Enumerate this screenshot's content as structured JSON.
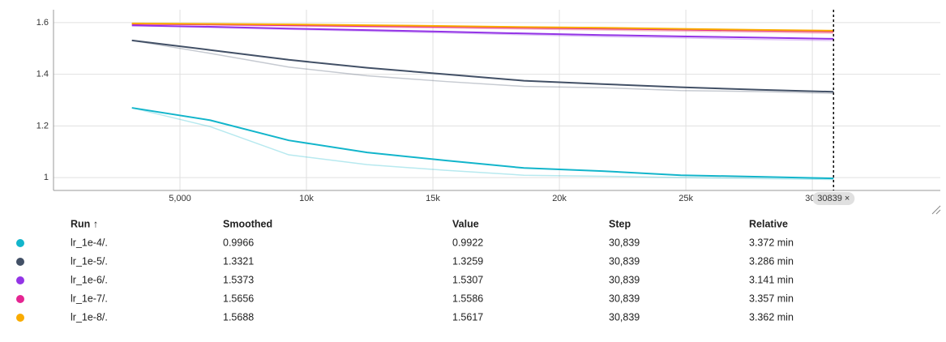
{
  "chart_data": {
    "type": "line",
    "x": [
      3100,
      6200,
      9300,
      12400,
      15500,
      18600,
      21700,
      24800,
      27900,
      30839
    ],
    "xlim": [
      0,
      35060
    ],
    "ylim": [
      0.95,
      1.65
    ],
    "xticks": [
      {
        "value": 5000,
        "label": "5,000"
      },
      {
        "value": 10000,
        "label": "10k"
      },
      {
        "value": 15000,
        "label": "15k"
      },
      {
        "value": 20000,
        "label": "20k"
      },
      {
        "value": 25000,
        "label": "25k"
      },
      {
        "value": 30000,
        "label": "30k"
      }
    ],
    "yticks": [
      1,
      1.2,
      1.4,
      1.6
    ],
    "grid": true,
    "cursor": {
      "value": 30839,
      "label": "30839 ×"
    },
    "series": [
      {
        "name": "lr_1e-4/.",
        "color": "#12b5cb",
        "values": [
          1.27,
          1.222,
          1.144,
          1.097,
          1.066,
          1.037,
          1.025,
          1.009,
          1.003,
          0.9966
        ],
        "raw_values": [
          1.27,
          1.197,
          1.088,
          1.05,
          1.028,
          1.009,
          1.005,
          1.0,
          0.996,
          0.9922
        ]
      },
      {
        "name": "lr_1e-5/.",
        "color": "#425066",
        "values": [
          1.531,
          1.494,
          1.456,
          1.425,
          1.4,
          1.375,
          1.362,
          1.35,
          1.34,
          1.3321
        ],
        "raw_values": [
          1.531,
          1.481,
          1.428,
          1.394,
          1.372,
          1.353,
          1.348,
          1.337,
          1.333,
          1.3259
        ]
      },
      {
        "name": "lr_1e-6/.",
        "color": "#9334e6",
        "values": [
          1.589,
          1.584,
          1.577,
          1.571,
          1.565,
          1.558,
          1.552,
          1.547,
          1.542,
          1.5373
        ],
        "raw_values": [
          1.589,
          1.581,
          1.574,
          1.567,
          1.56,
          1.553,
          1.546,
          1.541,
          1.535,
          1.5307
        ]
      },
      {
        "name": "lr_1e-7/.",
        "color": "#e52592",
        "values": [
          1.595,
          1.593,
          1.59,
          1.587,
          1.584,
          1.58,
          1.577,
          1.573,
          1.569,
          1.5656
        ],
        "raw_values": [
          1.595,
          1.591,
          1.587,
          1.583,
          1.579,
          1.575,
          1.571,
          1.567,
          1.563,
          1.5586
        ]
      },
      {
        "name": "lr_1e-8/.",
        "color": "#f9ab00",
        "values": [
          1.597,
          1.595,
          1.593,
          1.59,
          1.587,
          1.583,
          1.58,
          1.576,
          1.572,
          1.5688
        ],
        "raw_values": [
          1.597,
          1.594,
          1.59,
          1.586,
          1.582,
          1.578,
          1.574,
          1.57,
          1.566,
          1.5617
        ]
      }
    ]
  },
  "table": {
    "headers": [
      "Run ↑",
      "Smoothed",
      "Value",
      "Step",
      "Relative"
    ],
    "rows": [
      [
        "lr_1e-4/.",
        "0.9966",
        "0.9922",
        "30,839",
        "3.372 min"
      ],
      [
        "lr_1e-5/.",
        "1.3321",
        "1.3259",
        "30,839",
        "3.286 min"
      ],
      [
        "lr_1e-6/.",
        "1.5373",
        "1.5307",
        "30,839",
        "3.141 min"
      ],
      [
        "lr_1e-7/.",
        "1.5656",
        "1.5586",
        "30,839",
        "3.357 min"
      ],
      [
        "lr_1e-8/.",
        "1.5688",
        "1.5617",
        "30,839",
        "3.362 min"
      ]
    ]
  }
}
